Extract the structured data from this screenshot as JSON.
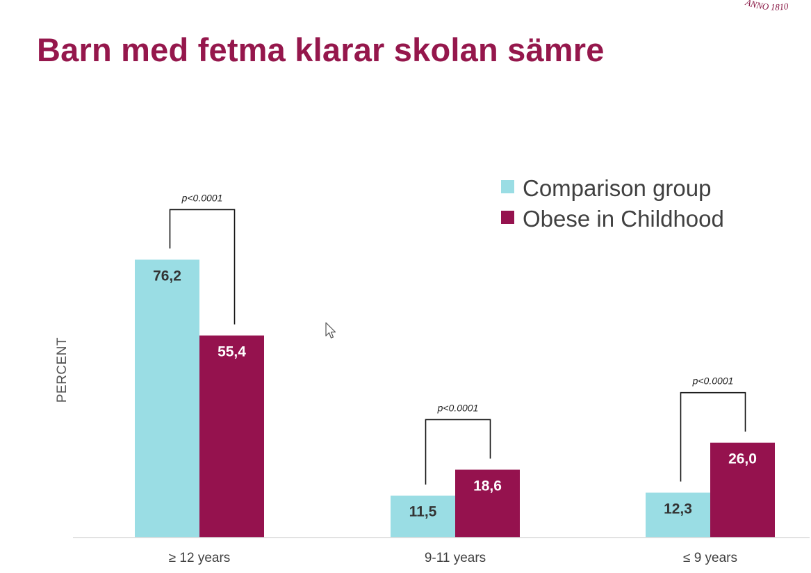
{
  "slide": {
    "title": "Barn med fetma klarar skolan sämre",
    "logo_text": "ANNO 1810"
  },
  "chart_data": {
    "type": "bar",
    "title": "",
    "xlabel": "",
    "ylabel": "PERCENT",
    "ylim": [
      0,
      80
    ],
    "grid": false,
    "legend_position": "top-right",
    "categories": [
      "≥ 12 years",
      "9-11 years",
      "≤ 9 years"
    ],
    "series": [
      {
        "name": "Comparison group",
        "color": "#9addE4",
        "values": [
          76.2,
          11.5,
          12.3
        ],
        "labels": [
          "76,2",
          "11,5",
          "12,3"
        ]
      },
      {
        "name": "Obese in Childhood",
        "color": "#95124e",
        "values": [
          55.4,
          18.6,
          26.0
        ],
        "labels": [
          "55,4",
          "18,6",
          "26,0"
        ]
      }
    ],
    "annotations": [
      "p<0.0001",
      "p<0.0001",
      "p<0.0001"
    ]
  }
}
